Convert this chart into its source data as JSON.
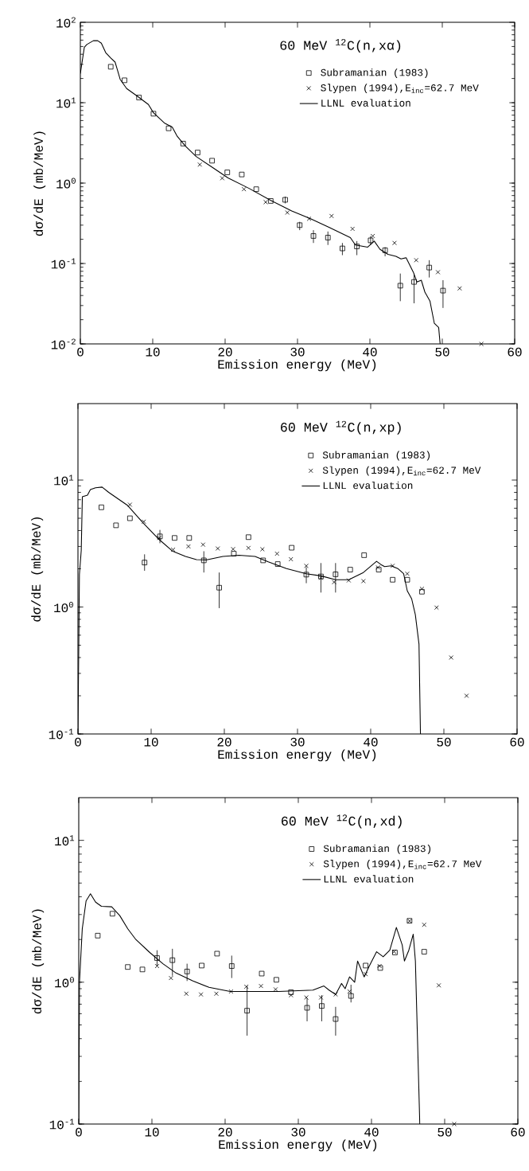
{
  "chart_data": [
    {
      "type": "scatter",
      "title": "60 MeV $^{12}$C(n,xα)",
      "xlabel": "Emission energy (MeV)",
      "ylabel": "dσ/dE (mb/MeV)",
      "log": "y",
      "legend": "top right",
      "xlim": [
        0,
        60
      ],
      "xticks": [
        0,
        10,
        20,
        30,
        40,
        50,
        60
      ],
      "ylim": [
        0.01,
        100
      ],
      "yticks": [
        {
          "value": 0.01,
          "label": "10$^{-2}$"
        },
        {
          "value": 0.1,
          "label": "10$^{-1}$"
        },
        {
          "value": 1,
          "label": "10$^{0}$"
        },
        {
          "value": 10,
          "label": "10$^{1}$"
        },
        {
          "value": 100,
          "label": "10$^{2}$"
        }
      ],
      "series": [
        {
          "name": "Subramanian (1983)",
          "marker": "square",
          "color": "#000000",
          "x": [
            4.2,
            6.1,
            8.1,
            10.1,
            12.2,
            14.2,
            16.2,
            18.2,
            20.3,
            22.3,
            24.3,
            26.3,
            28.3,
            30.3,
            32.2,
            34.2,
            36.2,
            38.2,
            40.1,
            42.1,
            44.2,
            46.1,
            48.2,
            50.1
          ],
          "values": [
            28,
            19,
            11.6,
            7.3,
            4.8,
            3.1,
            2.4,
            1.9,
            1.36,
            1.28,
            0.84,
            0.6,
            0.62,
            0.3,
            0.22,
            0.21,
            0.154,
            0.163,
            0.194,
            0.146,
            0.053,
            0.059,
            0.089,
            0.046
          ],
          "errors": [
            null,
            null,
            null,
            null,
            null,
            null,
            null,
            null,
            null,
            null,
            null,
            null,
            [
              0.56,
              0.68
            ],
            [
              0.26,
              0.33
            ],
            [
              0.18,
              0.26
            ],
            [
              0.17,
              0.25
            ],
            [
              0.127,
              0.18
            ],
            [
              0.127,
              0.19
            ],
            [
              0.17,
              0.22
            ],
            [
              0.123,
              0.16
            ],
            [
              0.034,
              0.075
            ],
            [
              0.032,
              0.075
            ],
            [
              0.067,
              0.11
            ],
            [
              0.028,
              0.062
            ]
          ]
        },
        {
          "name": "Slypen (1994),E$_{inc}$=62.7 MeV",
          "marker": "cross",
          "color": "#000000",
          "x": [
            16.5,
            19.6,
            22.6,
            25.6,
            28.6,
            31.6,
            34.7,
            37.6,
            40.4,
            43.4,
            46.4,
            49.4,
            52.4,
            55.4
          ],
          "values": [
            1.7,
            1.15,
            0.84,
            0.58,
            0.43,
            0.36,
            0.39,
            0.27,
            0.22,
            0.18,
            0.11,
            0.078,
            0.049,
            0.01
          ]
        },
        {
          "name": "LLNL evaluation",
          "type": "line",
          "marker": "none",
          "line_style": "solid",
          "color": "#000000",
          "x": [
            0,
            0.55,
            0.9,
            1.8,
            2.4,
            2.9,
            3.5,
            4.2,
            4.8,
            5.1,
            5.5,
            6.4,
            7.9,
            9.4,
            10.1,
            11.6,
            12.7,
            13.4,
            14.5,
            16,
            18.2,
            20.4,
            23.3,
            26.3,
            29.2,
            31.8,
            34.4,
            37.3,
            38.0,
            39.7,
            40.6,
            41.4,
            42.5,
            43.6,
            44.3,
            45.0,
            46.0,
            46.5,
            47.1,
            47.6,
            48.3,
            48.9,
            49.5,
            49.7
          ],
          "values": [
            23,
            49,
            53,
            59,
            59,
            55,
            42,
            36,
            32,
            26,
            19.5,
            15,
            12,
            9.5,
            7.5,
            5.6,
            4.96,
            3.8,
            2.9,
            2.14,
            1.58,
            1.16,
            0.86,
            0.61,
            0.45,
            0.36,
            0.28,
            0.21,
            0.17,
            0.16,
            0.19,
            0.15,
            0.13,
            0.123,
            0.114,
            0.118,
            0.078,
            0.059,
            0.062,
            0.044,
            0.034,
            0.018,
            0.016,
            0.01
          ]
        }
      ]
    },
    {
      "type": "scatter",
      "title": "60 MeV $^{12}$C(n,xp)",
      "xlabel": "Emission energy (MeV)",
      "ylabel": "dσ/dE (mb/MeV)",
      "log": "y",
      "legend": "top right",
      "xlim": [
        0,
        60
      ],
      "xticks": [
        0,
        10,
        20,
        30,
        40,
        50,
        60
      ],
      "ylim": [
        0.1,
        40
      ],
      "yticks": [
        {
          "value": 0.1,
          "label": "10$^{-1}$"
        },
        {
          "value": 1,
          "label": "10$^{0}$"
        },
        {
          "value": 10,
          "label": "10$^{1}$"
        }
      ],
      "series": [
        {
          "name": "Subramanian (1983)",
          "marker": "square",
          "color": "#000000",
          "x": [
            3.2,
            5.2,
            7.1,
            9.1,
            11.2,
            13.2,
            15.2,
            17.2,
            19.3,
            21.3,
            23.3,
            25.3,
            27.3,
            29.2,
            31.2,
            33.2,
            35.2,
            37.2,
            39.1,
            41.1,
            43.0,
            45.0,
            47.0
          ],
          "values": [
            6.1,
            4.4,
            5.0,
            2.24,
            3.6,
            3.5,
            3.5,
            2.33,
            1.42,
            2.63,
            3.55,
            2.33,
            2.18,
            2.93,
            1.8,
            1.74,
            1.81,
            1.97,
            2.56,
            1.97,
            1.64,
            1.64,
            1.32
          ],
          "errors": [
            null,
            null,
            null,
            [
              1.93,
              2.6
            ],
            [
              3.18,
              4.05
            ],
            null,
            null,
            [
              1.87,
              2.75
            ],
            [
              0.98,
              1.87
            ],
            null,
            null,
            null,
            null,
            null,
            [
              1.54,
              2.06
            ],
            [
              1.3,
              2.22
            ],
            [
              1.3,
              2.22
            ],
            null,
            null,
            null,
            null,
            null,
            null
          ]
        },
        {
          "name": "Slypen (1994),E$_{inc}$=62.7 MeV",
          "marker": "cross",
          "color": "#000000",
          "x": [
            7.1,
            9.0,
            11.1,
            13.0,
            15.1,
            17.1,
            19.1,
            21.2,
            23.3,
            25.2,
            27.2,
            29.1,
            31.2,
            33.2,
            35.0,
            37.0,
            39.0,
            41.0,
            43.0,
            45.0,
            47.0,
            49.0,
            51.0,
            53.1
          ],
          "values": [
            6.4,
            4.7,
            3.5,
            2.83,
            3.0,
            3.1,
            2.89,
            2.86,
            2.92,
            2.85,
            2.63,
            2.38,
            2.11,
            1.7,
            1.57,
            1.62,
            1.6,
            2.05,
            2.11,
            1.83,
            1.39,
            0.99,
            0.4,
            0.2
          ]
        },
        {
          "name": "LLNL evaluation",
          "type": "line",
          "marker": "none",
          "line_style": "solid",
          "color": "#000000",
          "x": [
            0,
            0.2,
            0.45,
            0.6,
            1.3,
            1.7,
            2.4,
            3.3,
            4.2,
            6.8,
            8.9,
            11.1,
            12.9,
            14.7,
            16.2,
            17.6,
            19.8,
            22.0,
            24.2,
            26.0,
            28.5,
            31.2,
            33.2,
            35.2,
            37.0,
            39.0,
            40.8,
            41.4,
            41.9,
            42.8,
            43.7,
            44.5,
            45.0,
            45.6,
            46.1,
            46.6,
            46.8
          ],
          "values": [
            0.1,
            1.8,
            2.8,
            7.4,
            7.6,
            8.4,
            8.7,
            8.8,
            8.0,
            6.3,
            4.6,
            3.4,
            2.76,
            2.5,
            2.36,
            2.35,
            2.5,
            2.56,
            2.5,
            2.27,
            2.01,
            1.83,
            1.76,
            1.64,
            1.64,
            1.87,
            2.29,
            2.16,
            2.08,
            2.11,
            2.01,
            1.83,
            1.34,
            1.16,
            0.87,
            0.51,
            0.1
          ]
        }
      ]
    },
    {
      "type": "scatter",
      "title": "60 MeV $^{12}$C(n,xd)",
      "xlabel": "Emission energy (MeV)",
      "ylabel": "dσ/dE (mb/MeV)",
      "log": "y",
      "legend": "top right",
      "xlim": [
        0,
        60
      ],
      "xticks": [
        0,
        10,
        20,
        30,
        40,
        50,
        60
      ],
      "ylim": [
        0.1,
        20
      ],
      "yticks": [
        {
          "value": 0.1,
          "label": "10$^{-1}$"
        },
        {
          "value": 1,
          "label": "10$^{0}$"
        },
        {
          "value": 10,
          "label": "10$^{1}$"
        }
      ],
      "series": [
        {
          "name": "Subramanian (1983)",
          "marker": "square",
          "color": "#000000",
          "x": [
            2.6,
            4.6,
            6.7,
            8.7,
            10.7,
            12.8,
            14.8,
            16.8,
            18.9,
            20.9,
            23.0,
            25.0,
            27.0,
            29.0,
            31.2,
            33.2,
            35.1,
            37.2,
            39.2,
            41.2,
            43.2,
            45.2,
            47.2
          ],
          "values": [
            2.13,
            3.04,
            1.28,
            1.23,
            1.48,
            1.43,
            1.19,
            1.31,
            1.59,
            1.3,
            0.63,
            1.15,
            1.04,
            0.85,
            0.66,
            0.68,
            0.55,
            0.8,
            1.31,
            1.26,
            1.62,
            2.71,
            1.64
          ],
          "errors": [
            null,
            null,
            null,
            null,
            [
              1.3,
              1.68
            ],
            [
              1.11,
              1.72
            ],
            [
              1.02,
              1.35
            ],
            null,
            null,
            [
              1.07,
              1.54
            ],
            [
              0.42,
              0.94
            ],
            null,
            null,
            null,
            [
              0.53,
              0.77
            ],
            [
              0.53,
              0.81
            ],
            [
              0.42,
              0.67
            ],
            [
              0.72,
              0.96
            ],
            null,
            null,
            null,
            null,
            null
          ]
        },
        {
          "name": "Slypen (1994),E$_{inc}$=62.7 MeV",
          "marker": "cross",
          "color": "#000000",
          "x": [
            10.7,
            12.6,
            14.7,
            16.7,
            18.8,
            20.8,
            22.9,
            24.9,
            26.9,
            29.0,
            31.1,
            33.1,
            35.1,
            37.0,
            39.2,
            41.1,
            43.1,
            45.2,
            47.2,
            49.2,
            51.3
          ],
          "values": [
            1.3,
            1.07,
            0.83,
            0.82,
            0.83,
            0.86,
            0.93,
            0.94,
            0.89,
            0.81,
            0.78,
            0.78,
            0.82,
            0.86,
            1.14,
            1.3,
            1.64,
            2.7,
            2.54,
            0.95,
            0.1
          ]
        },
        {
          "name": "LLNL evaluation",
          "type": "line",
          "marker": "none",
          "line_style": "solid",
          "color": "#000000",
          "x": [
            0,
            0.1,
            0.48,
            1.0,
            1.6,
            2.3,
            3.1,
            4.5,
            5.6,
            6.7,
            7.8,
            9.7,
            11.5,
            13.3,
            15.6,
            17.8,
            20.7,
            23.6,
            27.3,
            32.0,
            33.5,
            34.2,
            35.1,
            35.9,
            36.4,
            37.0,
            37.7,
            38.1,
            39.0,
            39.7,
            40.7,
            41.6,
            42.5,
            43.4,
            44.2,
            44.5,
            45.1,
            45.7,
            46.0,
            46.6
          ],
          "values": [
            0.1,
            1.0,
            2.38,
            3.74,
            4.2,
            3.67,
            3.43,
            3.4,
            2.95,
            2.38,
            2.0,
            1.62,
            1.35,
            1.16,
            1.02,
            0.92,
            0.86,
            0.86,
            0.86,
            0.88,
            0.94,
            0.88,
            0.82,
            0.98,
            0.9,
            1.09,
            1.0,
            1.41,
            1.09,
            1.3,
            1.64,
            1.51,
            1.68,
            2.43,
            1.83,
            1.41,
            1.68,
            2.18,
            1.41,
            0.1
          ]
        }
      ]
    }
  ]
}
